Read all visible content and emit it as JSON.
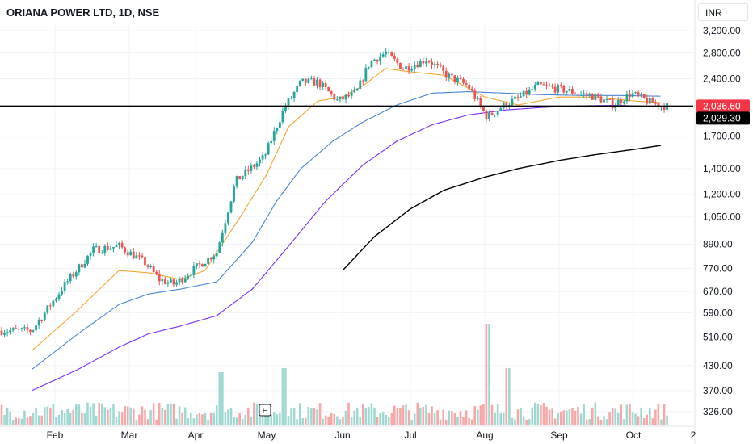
{
  "chart_data": {
    "type": "candlestick",
    "title": "ORIANA POWER LTD, 1D, NSE",
    "currency": "INR",
    "scale": "log",
    "ylim": [
      300,
      3500
    ],
    "y_ticks": [
      "3,200.00",
      "2,800.00",
      "2,400.00",
      "1,700.00",
      "1,400.00",
      "1,200.00",
      "1,050.00",
      "890.00",
      "770.00",
      "670.00",
      "590.00",
      "510.00",
      "430.00",
      "370.00",
      "326.00"
    ],
    "x_ticks": [
      "Feb",
      "Mar",
      "Apr",
      "May",
      "Jun",
      "Jul",
      "Aug",
      "Sep",
      "Oct",
      "2"
    ],
    "horizontal_line": 2036.6,
    "last_price": "2,036.60",
    "ma_value_label": "2,029.30",
    "earnings_marker": "E",
    "colors": {
      "up": "#26a69a",
      "down": "#ef5350",
      "ma_short": "#f7a530",
      "ma_mid": "#4a86d8",
      "ma_long": "#7b2ff7",
      "ma_200": "#000000",
      "last_price_bg": "#f23645",
      "ma_label_bg": "#000000"
    },
    "series": [
      {
        "name": "price",
        "anchors": [
          [
            "Jan 23",
            530
          ],
          [
            "Feb 5",
            700
          ],
          [
            "Feb 16",
            860
          ],
          [
            "Feb 26",
            880
          ],
          [
            "Mar 8",
            800
          ],
          [
            "Mar 15",
            720
          ],
          [
            "Mar 22",
            700
          ],
          [
            "Apr 2",
            780
          ],
          [
            "Apr 10",
            850
          ],
          [
            "Apr 18",
            1300
          ],
          [
            "Apr 30",
            1500
          ],
          [
            "May 8",
            2000
          ],
          [
            "May 15",
            2350
          ],
          [
            "May 22",
            2350
          ],
          [
            "May 30",
            2100
          ],
          [
            "Jun 7",
            2200
          ],
          [
            "Jun 13",
            2650
          ],
          [
            "Jun 20",
            2800
          ],
          [
            "Jun 28",
            2550
          ],
          [
            "Jul 8",
            2700
          ],
          [
            "Jul 16",
            2450
          ],
          [
            "Jul 25",
            2300
          ],
          [
            "Aug 2",
            1900
          ],
          [
            "Aug 9",
            2050
          ],
          [
            "Aug 16",
            2150
          ],
          [
            "Aug 23",
            2300
          ],
          [
            "Sep 2",
            2250
          ],
          [
            "Sep 9",
            2200
          ],
          [
            "Sep 16",
            2150
          ],
          [
            "Sep 23",
            2050
          ],
          [
            "Sep 30",
            2200
          ],
          [
            "Oct 7",
            2100
          ],
          [
            "Oct 14",
            2040
          ]
        ]
      },
      {
        "name": "ma_short",
        "anchors": [
          [
            "Jan 23",
            470
          ],
          [
            "Feb 10",
            600
          ],
          [
            "Feb 26",
            760
          ],
          [
            "Mar 10",
            750
          ],
          [
            "Mar 25",
            720
          ],
          [
            "Apr 5",
            760
          ],
          [
            "Apr 20",
            1050
          ],
          [
            "May 1",
            1350
          ],
          [
            "May 10",
            1800
          ],
          [
            "May 22",
            2100
          ],
          [
            "Jun 1",
            2150
          ],
          [
            "Jun 10",
            2300
          ],
          [
            "Jun 20",
            2550
          ],
          [
            "Jul 1",
            2500
          ],
          [
            "Jul 15",
            2450
          ],
          [
            "Aug 1",
            2150
          ],
          [
            "Aug 15",
            2050
          ],
          [
            "Sep 1",
            2150
          ],
          [
            "Sep 15",
            2150
          ],
          [
            "Oct 1",
            2100
          ],
          [
            "Oct 14",
            2080
          ]
        ]
      },
      {
        "name": "ma_mid",
        "anchors": [
          [
            "Jan 23",
            420
          ],
          [
            "Feb 10",
            520
          ],
          [
            "Feb 26",
            620
          ],
          [
            "Mar 10",
            660
          ],
          [
            "Mar 25",
            680
          ],
          [
            "Apr 10",
            710
          ],
          [
            "Apr 25",
            900
          ],
          [
            "May 5",
            1150
          ],
          [
            "May 15",
            1400
          ],
          [
            "May 28",
            1650
          ],
          [
            "Jun 10",
            1850
          ],
          [
            "Jun 25",
            2050
          ],
          [
            "Jul 10",
            2200
          ],
          [
            "Jul 25",
            2220
          ],
          [
            "Aug 10",
            2200
          ],
          [
            "Aug 25",
            2180
          ],
          [
            "Sep 10",
            2170
          ],
          [
            "Sep 25",
            2170
          ],
          [
            "Oct 14",
            2160
          ]
        ]
      },
      {
        "name": "ma_long",
        "anchors": [
          [
            "Jan 23",
            370
          ],
          [
            "Feb 10",
            420
          ],
          [
            "Feb 26",
            480
          ],
          [
            "Mar 10",
            520
          ],
          [
            "Mar 25",
            545
          ],
          [
            "Apr 10",
            580
          ],
          [
            "Apr 25",
            680
          ],
          [
            "May 10",
            880
          ],
          [
            "May 25",
            1150
          ],
          [
            "Jun 10",
            1430
          ],
          [
            "Jun 25",
            1650
          ],
          [
            "Jul 10",
            1820
          ],
          [
            "Jul 25",
            1930
          ],
          [
            "Aug 10",
            1990
          ],
          [
            "Aug 25",
            2020
          ],
          [
            "Sep 10",
            2040
          ],
          [
            "Sep 25",
            2045
          ],
          [
            "Oct 14",
            2029
          ]
        ]
      },
      {
        "name": "ma_200",
        "anchors": [
          [
            "Jun 1",
            760
          ],
          [
            "Jun 15",
            930
          ],
          [
            "Jul 1",
            1100
          ],
          [
            "Jul 15",
            1230
          ],
          [
            "Aug 1",
            1330
          ],
          [
            "Aug 15",
            1400
          ],
          [
            "Sep 1",
            1470
          ],
          [
            "Sep 15",
            1520
          ],
          [
            "Oct 1",
            1570
          ],
          [
            "Oct 14",
            1610
          ]
        ]
      }
    ],
    "volume": {
      "spike_date": "Aug 2",
      "note": "relative daily volume bars at bottom"
    }
  }
}
